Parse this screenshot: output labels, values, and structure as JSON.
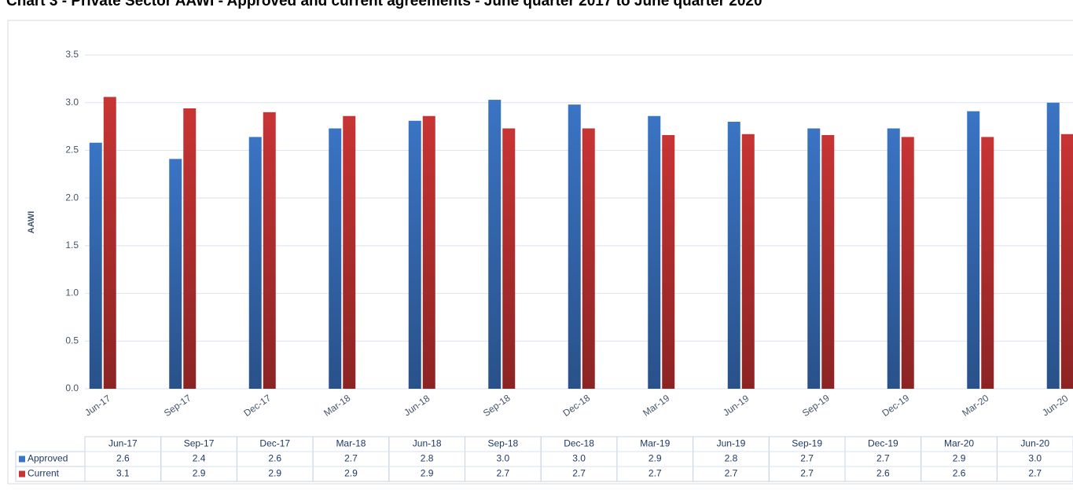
{
  "chart_data": {
    "type": "bar",
    "title": "Chart 3 - Private Sector AAWI - Approved and current agreements - June quarter 2017 to June quarter 2020",
    "y_label": "AAWI",
    "categories": [
      "Jun-17",
      "Sep-17",
      "Dec-17",
      "Mar-18",
      "Jun-18",
      "Sep-18",
      "Dec-18",
      "Mar-19",
      "Jun-19",
      "Sep-19",
      "Dec-19",
      "Mar-20",
      "Jun-20"
    ],
    "series": [
      {
        "name": "Approved",
        "color": "#3a74c4",
        "values": [
          2.58,
          2.41,
          2.64,
          2.73,
          2.81,
          3.03,
          2.98,
          2.86,
          2.8,
          2.73,
          2.73,
          2.91,
          3.0
        ],
        "value_labels": [
          "2.6",
          "2.4",
          "2.6",
          "2.7",
          "2.8",
          "3.0",
          "3.0",
          "2.9",
          "2.8",
          "2.7",
          "2.7",
          "2.9",
          "3.0"
        ]
      },
      {
        "name": "Current",
        "color": "#c83434",
        "values": [
          3.06,
          2.94,
          2.9,
          2.86,
          2.86,
          2.73,
          2.73,
          2.66,
          2.67,
          2.66,
          2.64,
          2.64,
          2.67
        ],
        "value_labels": [
          "3.1",
          "2.9",
          "2.9",
          "2.9",
          "2.9",
          "2.7",
          "2.7",
          "2.7",
          "2.7",
          "2.7",
          "2.6",
          "2.6",
          "2.7"
        ]
      }
    ],
    "ylim": [
      0,
      3.5
    ],
    "yticks": [
      {
        "value": 0,
        "label": "0.0"
      },
      {
        "value": 0.5,
        "label": "0.5"
      },
      {
        "value": 1,
        "label": "1.0"
      },
      {
        "value": 1.5,
        "label": "1.5"
      },
      {
        "value": 2,
        "label": "2.0"
      },
      {
        "value": 2.5,
        "label": "2.5"
      },
      {
        "value": 3,
        "label": "3.0"
      },
      {
        "value": 3.5,
        "label": "3.5"
      }
    ],
    "grid": true
  }
}
